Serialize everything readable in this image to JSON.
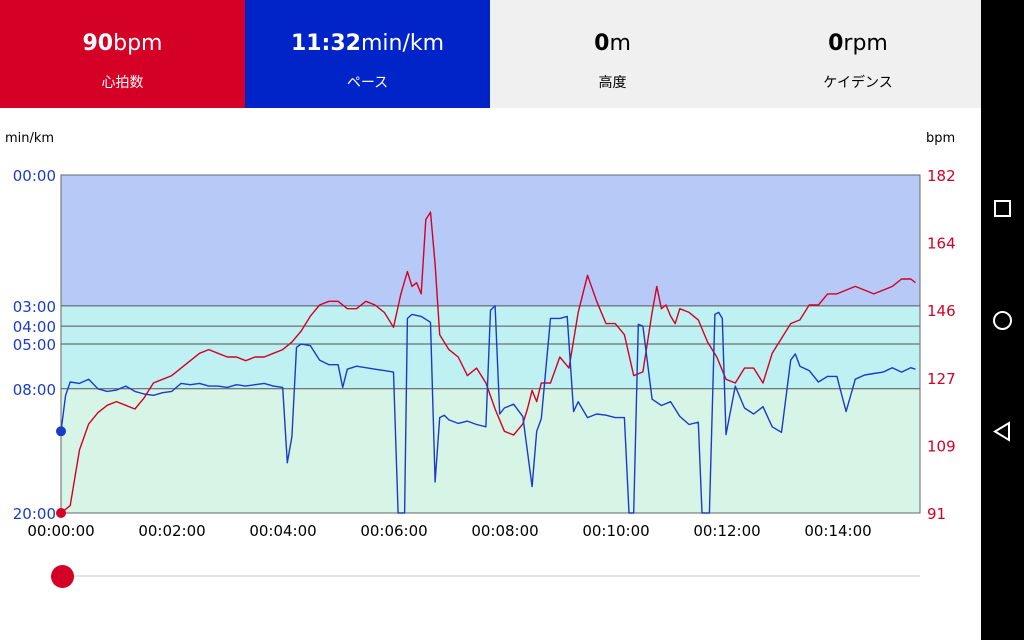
{
  "stats": {
    "heart_rate": {
      "value": "90",
      "unit": "bpm",
      "label": "心拍数",
      "color": "#d40025"
    },
    "pace": {
      "value": "11:32",
      "unit": "min/km",
      "label": "ペース",
      "color": "#0024c8"
    },
    "altitude": {
      "value": "0",
      "unit": "m",
      "label": "高度"
    },
    "cadence": {
      "value": "0",
      "unit": "rpm",
      "label": "ケイデンス"
    }
  },
  "chart_data": {
    "type": "line",
    "left_axis_unit": "min/km",
    "right_axis_unit": "bpm",
    "left_ticks": [
      "00:00",
      "03:00",
      "04:00",
      "05:00",
      "08:00",
      "20:00"
    ],
    "right_ticks": [
      "182",
      "164",
      "146",
      "127",
      "109",
      "91"
    ],
    "x_ticks": [
      "00:00:00",
      "00:02:00",
      "00:04:00",
      "00:06:00",
      "00:08:00",
      "00:10:00",
      "00:12:00",
      "00:14:00"
    ],
    "x_range_seconds": [
      0,
      930
    ],
    "left_range_min_per_km": [
      0,
      20
    ],
    "right_range_bpm": [
      91,
      182
    ],
    "zones": [
      {
        "from": "00:00",
        "to": "03:00",
        "color": "#b6c9f7"
      },
      {
        "from": "03:00",
        "to": "08:00",
        "color": "#bff0f2"
      },
      {
        "from": "08:00",
        "to": "20:00",
        "color": "#d6f5e7"
      }
    ],
    "grid": true,
    "series": [
      {
        "axis": "right",
        "color": "#d40025",
        "x": [
          0,
          10,
          20,
          30,
          40,
          50,
          60,
          70,
          80,
          90,
          100,
          110,
          120,
          130,
          140,
          150,
          160,
          170,
          180,
          190,
          200,
          210,
          220,
          230,
          240,
          250,
          260,
          270,
          280,
          290,
          300,
          310,
          320,
          330,
          340,
          350,
          360,
          368,
          375,
          380,
          385,
          390,
          395,
          400,
          405,
          410,
          420,
          430,
          440,
          450,
          460,
          470,
          480,
          490,
          500,
          505,
          510,
          515,
          520,
          530,
          540,
          550,
          560,
          570,
          580,
          590,
          600,
          610,
          620,
          630,
          640,
          645,
          650,
          655,
          660,
          665,
          670,
          680,
          690,
          700,
          710,
          720,
          730,
          740,
          750,
          760,
          770,
          780,
          790,
          800,
          810,
          820,
          830,
          840,
          850,
          860,
          870,
          880,
          890,
          900,
          910,
          920,
          925
        ],
        "values": [
          91,
          93,
          108,
          115,
          118,
          120,
          121,
          120,
          119,
          122,
          126,
          127,
          128,
          130,
          132,
          134,
          135,
          134,
          133,
          133,
          132,
          133,
          133,
          134,
          135,
          137,
          140,
          144,
          147,
          148,
          148,
          146,
          146,
          148,
          147,
          145,
          141,
          150,
          156,
          152,
          153,
          150,
          170,
          172,
          158,
          139,
          135,
          133,
          128,
          130,
          126,
          119,
          113,
          112,
          115,
          119,
          124,
          121,
          126,
          126,
          133,
          130,
          145,
          155,
          148,
          142,
          142,
          139,
          128,
          129,
          145,
          152,
          146,
          147,
          144,
          142,
          146,
          145,
          143,
          137,
          133,
          127,
          126,
          130,
          130,
          126,
          134,
          138,
          142,
          143,
          147,
          147,
          150,
          150,
          151,
          152,
          151,
          150,
          151,
          152,
          154,
          154,
          153
        ]
      },
      {
        "axis": "left",
        "color": "#1a3cc8",
        "x": [
          0,
          5,
          10,
          20,
          30,
          40,
          50,
          60,
          70,
          80,
          90,
          100,
          110,
          120,
          130,
          140,
          150,
          160,
          170,
          180,
          190,
          200,
          210,
          220,
          230,
          240,
          245,
          250,
          255,
          260,
          270,
          280,
          290,
          300,
          305,
          310,
          320,
          340,
          350,
          360,
          365,
          368,
          372,
          375,
          380,
          390,
          400,
          405,
          410,
          415,
          420,
          430,
          440,
          450,
          460,
          465,
          470,
          475,
          480,
          490,
          500,
          510,
          515,
          520,
          530,
          540,
          548,
          555,
          560,
          570,
          580,
          590,
          600,
          610,
          615,
          620,
          625,
          630,
          640,
          650,
          660,
          670,
          680,
          690,
          694,
          698,
          702,
          708,
          712,
          716,
          720,
          730,
          740,
          750,
          760,
          770,
          780,
          790,
          795,
          800,
          810,
          820,
          830,
          840,
          850,
          860,
          870,
          880,
          890,
          900,
          910,
          920,
          925
        ],
        "values": [
          11.5,
          8.5,
          7.5,
          7.6,
          7.3,
          8.0,
          8.2,
          8.1,
          7.8,
          8.2,
          8.4,
          8.5,
          8.3,
          8.2,
          7.6,
          7.7,
          7.6,
          7.8,
          7.8,
          7.9,
          7.7,
          7.8,
          7.7,
          7.6,
          7.8,
          7.9,
          14.5,
          12.0,
          5.2,
          5.0,
          5.1,
          6.0,
          6.3,
          6.3,
          7.9,
          6.6,
          6.4,
          6.6,
          6.7,
          6.8,
          20,
          20,
          20,
          3.6,
          3.4,
          3.5,
          3.8,
          16.5,
          10.3,
          10.1,
          10.5,
          10.8,
          10.6,
          10.9,
          11.1,
          3.2,
          3.0,
          10.0,
          9.5,
          9.2,
          10.2,
          17.0,
          11.5,
          10.4,
          3.6,
          3.6,
          3.5,
          9.8,
          9.0,
          10.3,
          10.0,
          10.1,
          10.3,
          10.3,
          20,
          20,
          3.9,
          4.0,
          8.8,
          9.3,
          9.0,
          10.2,
          10.9,
          10.7,
          20,
          20,
          20,
          3.4,
          3.3,
          3.6,
          11.8,
          7.8,
          9.5,
          10.0,
          9.4,
          11.1,
          11.6,
          6.0,
          5.6,
          6.4,
          6.7,
          7.5,
          7.1,
          7.1,
          9.8,
          7.3,
          7.0,
          6.9,
          6.8,
          6.5,
          6.8,
          6.5,
          6.6
        ]
      }
    ],
    "current_time_seconds": 0
  },
  "seek_position": 0,
  "navbar": {
    "buttons": [
      "overview-icon",
      "home-icon",
      "back-icon"
    ]
  }
}
